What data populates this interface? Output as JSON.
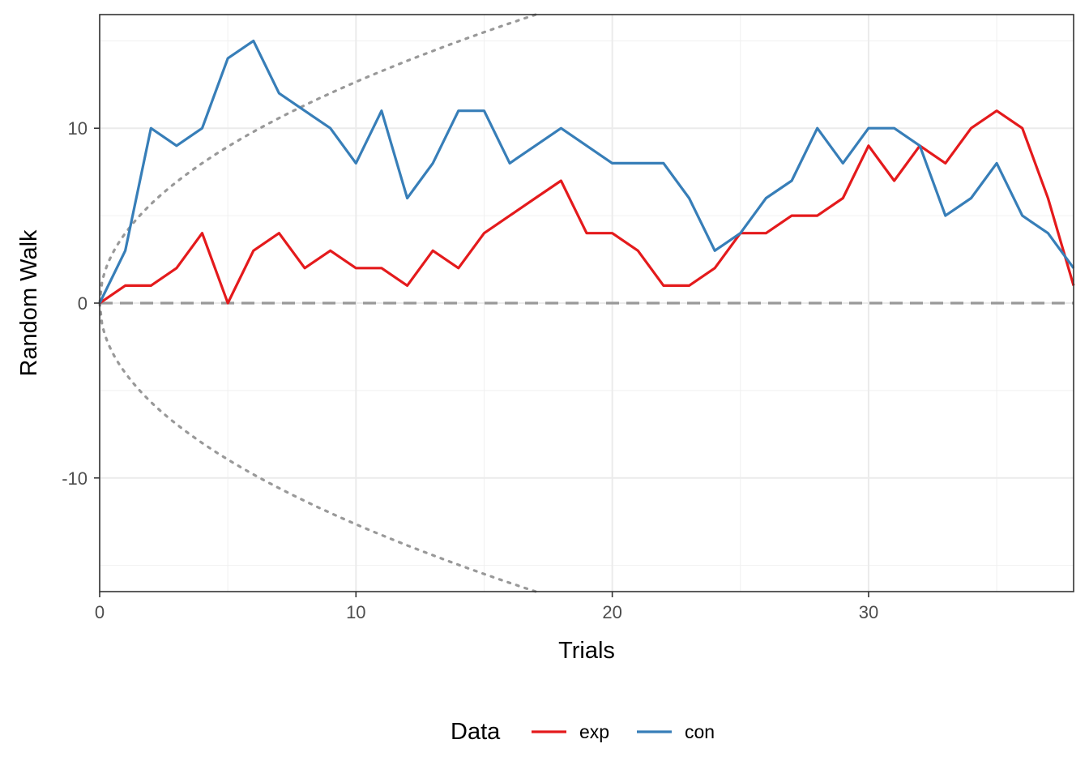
{
  "chart_data": {
    "type": "line",
    "xlabel": "Trials",
    "ylabel": "Random Walk",
    "xlim": [
      0,
      38
    ],
    "ylim": [
      -16.5,
      16.5
    ],
    "x_ticks": [
      0,
      10,
      20,
      30
    ],
    "y_ticks": [
      -10,
      0,
      10
    ],
    "x_ticks_labels": [
      "0",
      "10",
      "20",
      "30"
    ],
    "y_ticks_labels": [
      "-10",
      "0",
      "10"
    ],
    "grid": true,
    "legend": {
      "title": "Data",
      "position": "bottom"
    },
    "reference_lines": {
      "zero_line": {
        "y": 0,
        "style": "dashed",
        "color": "#999999"
      },
      "bounds": {
        "formula": "±4·sqrt(x)",
        "style": "dotted",
        "color": "#999999"
      }
    },
    "x": [
      0,
      1,
      2,
      3,
      4,
      5,
      6,
      7,
      8,
      9,
      10,
      11,
      12,
      13,
      14,
      15,
      16,
      17,
      18,
      19,
      20,
      21,
      22,
      23,
      24,
      25,
      26,
      27,
      28,
      29,
      30,
      31,
      32,
      33,
      34,
      35,
      36,
      37,
      38
    ],
    "series": [
      {
        "name": "exp",
        "color": "#E41A1C",
        "values": [
          0,
          1,
          1,
          2,
          4,
          0,
          3,
          4,
          2,
          3,
          2,
          2,
          1,
          3,
          2,
          4,
          5,
          6,
          7,
          4,
          4,
          3,
          1,
          1,
          2,
          4,
          4,
          5,
          5,
          6,
          9,
          7,
          9,
          8,
          10,
          11,
          10,
          6,
          1
        ]
      },
      {
        "name": "con",
        "color": "#377EB8",
        "values": [
          0,
          3,
          10,
          9,
          10,
          14,
          15,
          12,
          11,
          10,
          8,
          11,
          6,
          8,
          11,
          11,
          8,
          9,
          10,
          9,
          8,
          8,
          8,
          6,
          3,
          4,
          6,
          7,
          10,
          8,
          10,
          10,
          9,
          5,
          6,
          8,
          5,
          4,
          2
        ]
      }
    ]
  }
}
